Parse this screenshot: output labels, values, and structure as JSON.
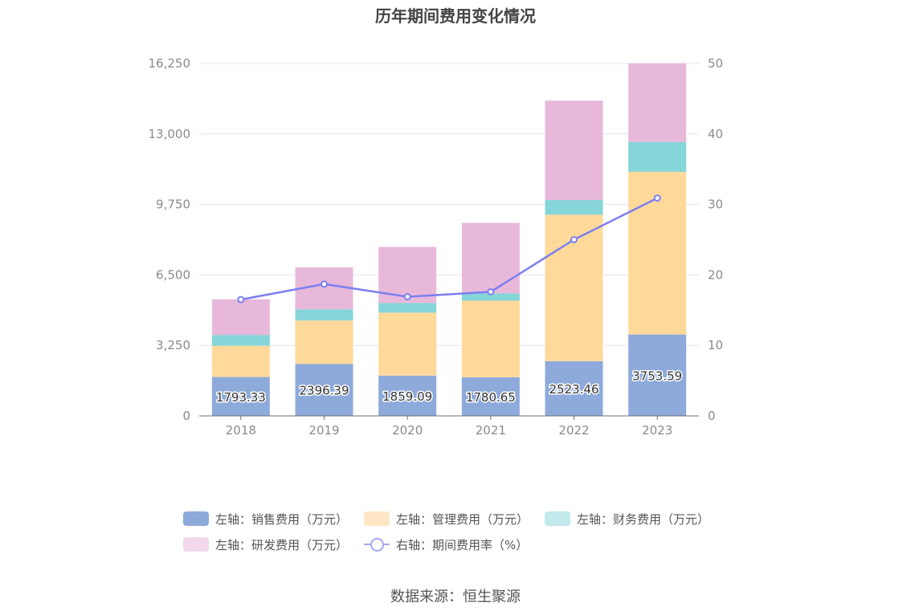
{
  "chart_data": {
    "type": "bar",
    "title": "历年期间费用变化情况",
    "categories": [
      "2018",
      "2019",
      "2020",
      "2021",
      "2022",
      "2023"
    ],
    "series": [
      {
        "name": "左轴：销售费用（万元）",
        "axis": "left",
        "color": "#8eaadb",
        "values": [
          1793.33,
          2396.39,
          1859.09,
          1780.65,
          2523.46,
          3753.59
        ]
      },
      {
        "name": "左轴：管理费用（万元）",
        "axis": "left",
        "color": "#ffd99a",
        "values": [
          1440,
          2000,
          2900,
          3530,
          6750,
          7500
        ]
      },
      {
        "name": "左轴：财务费用（万元）",
        "axis": "left",
        "color": "#86d5d8",
        "values": [
          500,
          520,
          450,
          340,
          680,
          1380
        ]
      },
      {
        "name": "左轴：研发费用（万元）",
        "axis": "left",
        "color": "#e8b8da",
        "values": [
          1640,
          1930,
          2580,
          3250,
          4580,
          3620
        ]
      },
      {
        "name": "右轴：期间费用率（%）",
        "axis": "right",
        "type": "line",
        "color": "#7b7ff0",
        "values": [
          16.5,
          18.7,
          16.9,
          17.6,
          25.0,
          30.9
        ]
      }
    ],
    "bar_data_labels": [
      "1793.33",
      "2396.39",
      "1859.09",
      "1780.65",
      "2523.46",
      "3753.59"
    ],
    "ylim_left": [
      0,
      16250
    ],
    "yticks_left": [
      "0",
      "3,250",
      "6,500",
      "9,750",
      "13,000",
      "16,250"
    ],
    "ylim_right": [
      0,
      50
    ],
    "yticks_right": [
      "0",
      "10",
      "20",
      "30",
      "40",
      "50"
    ],
    "stacked": true,
    "grid": true,
    "legend_position": "bottom"
  },
  "legend": {
    "rows": [
      [
        {
          "label": "左轴：销售费用（万元）",
          "kind": "box",
          "color": "#8eaadb"
        },
        {
          "label": "左轴：管理费用（万元）",
          "kind": "box",
          "color": "#ffe6c4"
        },
        {
          "label": "左轴：财务费用（万元）",
          "kind": "box",
          "color": "#c2e9eb"
        }
      ],
      [
        {
          "label": "左轴：研发费用（万元）",
          "kind": "box",
          "color": "#f2d8ea"
        },
        {
          "label": "右轴：期间费用率（%）",
          "kind": "line",
          "color": "#a6a8f0"
        }
      ]
    ]
  },
  "source": "数据来源：恒生聚源"
}
